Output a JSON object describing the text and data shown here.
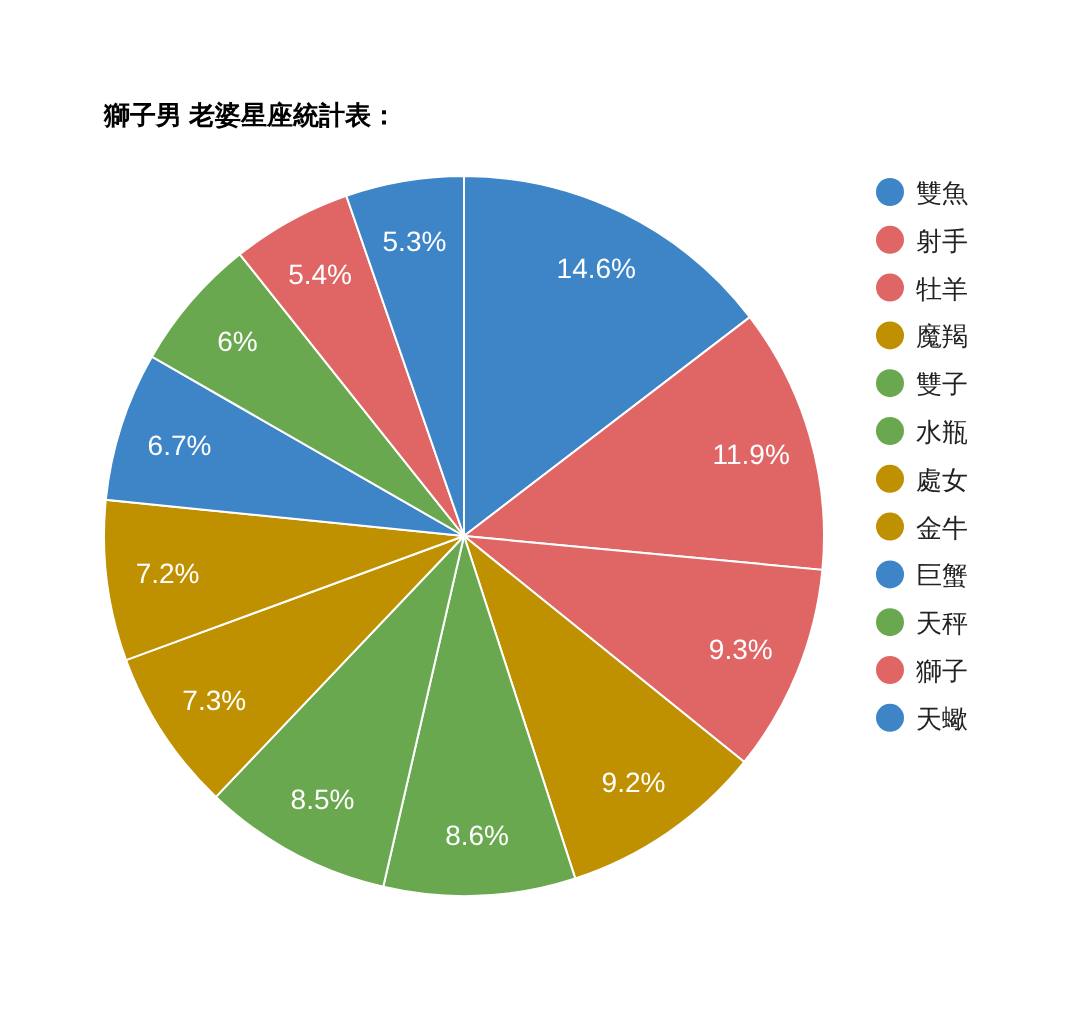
{
  "chart_data": {
    "type": "pie",
    "title": "獅子男 老婆星座統計表：",
    "categories": [
      "雙魚",
      "射手",
      "牡羊",
      "魔羯",
      "雙子",
      "水瓶",
      "處女",
      "金牛",
      "巨蟹",
      "天秤",
      "獅子",
      "天蠍"
    ],
    "values": [
      14.6,
      11.9,
      9.3,
      9.2,
      8.6,
      8.5,
      7.3,
      7.2,
      6.7,
      6,
      5.4,
      5.3
    ],
    "colors": [
      "#3d85c6",
      "#e06666",
      "#e06666",
      "#bf9000",
      "#6aa84f",
      "#6aa84f",
      "#bf9000",
      "#bf9000",
      "#3d85c6",
      "#6aa84f",
      "#e06666",
      "#3d85c6"
    ],
    "value_labels": [
      "14.6%",
      "11.9%",
      "9.3%",
      "9.2%",
      "8.6%",
      "8.5%",
      "7.3%",
      "7.2%",
      "6.7%",
      "6%",
      "5.4%",
      "5.3%"
    ],
    "legend": "right"
  }
}
